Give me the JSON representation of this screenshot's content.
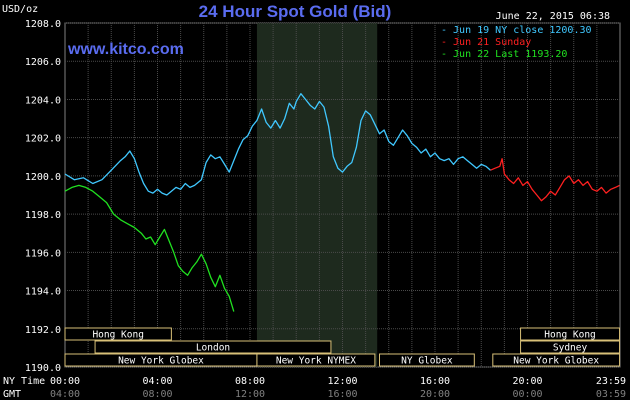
{
  "chart_data": {
    "type": "line",
    "title": "24 Hour Spot Gold (Bid)",
    "watermark": "www.kitco.com",
    "timestamp": "June 22, 2015 06:38",
    "ylabel": "USD/oz",
    "ylim": [
      1190,
      1208
    ],
    "xlim": [
      0,
      24
    ],
    "y_ticks": [
      {
        "v": 1190,
        "label": "1190.0"
      },
      {
        "v": 1192,
        "label": "1192.0"
      },
      {
        "v": 1194,
        "label": "1194.0"
      },
      {
        "v": 1196,
        "label": "1196.0"
      },
      {
        "v": 1198,
        "label": "1198.0"
      },
      {
        "v": 1200,
        "label": "1200.0"
      },
      {
        "v": 1202,
        "label": "1202.0"
      },
      {
        "v": 1204,
        "label": "1204.0"
      },
      {
        "v": 1206,
        "label": "1206.0"
      },
      {
        "v": 1208,
        "label": "1208.0"
      }
    ],
    "x_ticks": [
      {
        "h": 0,
        "ny": "00:00",
        "gmt": "04:00"
      },
      {
        "h": 4,
        "ny": "04:00",
        "gmt": "08:00"
      },
      {
        "h": 8,
        "ny": "08:00",
        "gmt": "12:00"
      },
      {
        "h": 12,
        "ny": "12:00",
        "gmt": "16:00"
      },
      {
        "h": 16,
        "ny": "16:00",
        "gmt": "20:00"
      },
      {
        "h": 20,
        "ny": "20:00",
        "gmt": "00:00"
      },
      {
        "h": 23.98,
        "ny": "23:59",
        "gmt": "03:59"
      }
    ],
    "x_axis_labels": {
      "ny": "NY Time",
      "gmt": "GMT"
    },
    "highlight_range": [
      8.3,
      13.5
    ],
    "grid": true,
    "legend_position": "top-right",
    "series": [
      {
        "name": "Jun 19 NY close 1200.30",
        "color": "#40c8ff",
        "points": [
          [
            0,
            1200.1
          ],
          [
            0.4,
            1199.8
          ],
          [
            0.8,
            1199.9
          ],
          [
            1.2,
            1199.6
          ],
          [
            1.6,
            1199.8
          ],
          [
            2.0,
            1200.3
          ],
          [
            2.4,
            1200.8
          ],
          [
            2.6,
            1201.0
          ],
          [
            2.8,
            1201.3
          ],
          [
            3.0,
            1200.9
          ],
          [
            3.2,
            1200.2
          ],
          [
            3.4,
            1199.6
          ],
          [
            3.6,
            1199.2
          ],
          [
            3.8,
            1199.1
          ],
          [
            4.0,
            1199.3
          ],
          [
            4.2,
            1199.1
          ],
          [
            4.4,
            1199.0
          ],
          [
            4.6,
            1199.2
          ],
          [
            4.8,
            1199.4
          ],
          [
            5.0,
            1199.3
          ],
          [
            5.2,
            1199.6
          ],
          [
            5.4,
            1199.4
          ],
          [
            5.6,
            1199.5
          ],
          [
            5.9,
            1199.8
          ],
          [
            6.1,
            1200.7
          ],
          [
            6.3,
            1201.1
          ],
          [
            6.5,
            1200.9
          ],
          [
            6.7,
            1201.0
          ],
          [
            6.9,
            1200.6
          ],
          [
            7.1,
            1200.2
          ],
          [
            7.3,
            1200.8
          ],
          [
            7.5,
            1201.4
          ],
          [
            7.7,
            1201.9
          ],
          [
            7.9,
            1202.1
          ],
          [
            8.1,
            1202.6
          ],
          [
            8.3,
            1202.9
          ],
          [
            8.5,
            1203.5
          ],
          [
            8.7,
            1202.8
          ],
          [
            8.9,
            1202.5
          ],
          [
            9.1,
            1202.9
          ],
          [
            9.3,
            1202.5
          ],
          [
            9.5,
            1203.0
          ],
          [
            9.7,
            1203.8
          ],
          [
            9.9,
            1203.5
          ],
          [
            10.0,
            1203.9
          ],
          [
            10.2,
            1204.3
          ],
          [
            10.4,
            1204.0
          ],
          [
            10.6,
            1203.7
          ],
          [
            10.8,
            1203.5
          ],
          [
            11.0,
            1203.9
          ],
          [
            11.2,
            1203.6
          ],
          [
            11.4,
            1202.6
          ],
          [
            11.6,
            1201.0
          ],
          [
            11.8,
            1200.4
          ],
          [
            12.0,
            1200.2
          ],
          [
            12.2,
            1200.5
          ],
          [
            12.4,
            1200.7
          ],
          [
            12.6,
            1201.5
          ],
          [
            12.8,
            1202.9
          ],
          [
            13.0,
            1203.4
          ],
          [
            13.2,
            1203.2
          ],
          [
            13.4,
            1202.7
          ],
          [
            13.6,
            1202.2
          ],
          [
            13.8,
            1202.4
          ],
          [
            14.0,
            1201.8
          ],
          [
            14.2,
            1201.6
          ],
          [
            14.4,
            1202.0
          ],
          [
            14.6,
            1202.4
          ],
          [
            14.8,
            1202.1
          ],
          [
            15.0,
            1201.7
          ],
          [
            15.2,
            1201.5
          ],
          [
            15.4,
            1201.2
          ],
          [
            15.6,
            1201.4
          ],
          [
            15.8,
            1201.0
          ],
          [
            16.0,
            1201.2
          ],
          [
            16.2,
            1200.9
          ],
          [
            16.4,
            1200.8
          ],
          [
            16.6,
            1200.9
          ],
          [
            16.8,
            1200.6
          ],
          [
            17.0,
            1200.9
          ],
          [
            17.2,
            1201.0
          ],
          [
            17.4,
            1200.8
          ],
          [
            17.6,
            1200.6
          ],
          [
            17.8,
            1200.4
          ],
          [
            18.0,
            1200.6
          ],
          [
            18.2,
            1200.5
          ],
          [
            18.4,
            1200.3
          ]
        ]
      },
      {
        "name": "Jun 21 Sunday",
        "color": "#ff2020",
        "points": [
          [
            18.4,
            1200.3
          ],
          [
            18.6,
            1200.4
          ],
          [
            18.8,
            1200.5
          ],
          [
            18.9,
            1200.9
          ],
          [
            19.0,
            1200.1
          ],
          [
            19.2,
            1199.8
          ],
          [
            19.4,
            1199.6
          ],
          [
            19.6,
            1199.9
          ],
          [
            19.8,
            1199.5
          ],
          [
            20.0,
            1199.7
          ],
          [
            20.2,
            1199.3
          ],
          [
            20.4,
            1199.0
          ],
          [
            20.6,
            1198.7
          ],
          [
            20.8,
            1198.9
          ],
          [
            21.0,
            1199.2
          ],
          [
            21.2,
            1199.0
          ],
          [
            21.4,
            1199.4
          ],
          [
            21.6,
            1199.8
          ],
          [
            21.8,
            1200.0
          ],
          [
            22.0,
            1199.6
          ],
          [
            22.2,
            1199.8
          ],
          [
            22.4,
            1199.5
          ],
          [
            22.6,
            1199.7
          ],
          [
            22.8,
            1199.3
          ],
          [
            23.0,
            1199.2
          ],
          [
            23.2,
            1199.4
          ],
          [
            23.4,
            1199.1
          ],
          [
            23.6,
            1199.3
          ],
          [
            23.8,
            1199.4
          ],
          [
            23.98,
            1199.5
          ]
        ]
      },
      {
        "name": "Jun 22 Last 1193.20",
        "color": "#20e020",
        "points": [
          [
            0,
            1199.2
          ],
          [
            0.3,
            1199.4
          ],
          [
            0.6,
            1199.5
          ],
          [
            0.9,
            1199.4
          ],
          [
            1.2,
            1199.2
          ],
          [
            1.5,
            1198.9
          ],
          [
            1.8,
            1198.6
          ],
          [
            2.1,
            1198.0
          ],
          [
            2.4,
            1197.7
          ],
          [
            2.7,
            1197.5
          ],
          [
            3.0,
            1197.3
          ],
          [
            3.3,
            1197.0
          ],
          [
            3.5,
            1196.7
          ],
          [
            3.7,
            1196.8
          ],
          [
            3.9,
            1196.4
          ],
          [
            4.1,
            1196.8
          ],
          [
            4.3,
            1197.2
          ],
          [
            4.5,
            1196.6
          ],
          [
            4.7,
            1196.0
          ],
          [
            4.9,
            1195.3
          ],
          [
            5.1,
            1195.0
          ],
          [
            5.3,
            1194.8
          ],
          [
            5.5,
            1195.2
          ],
          [
            5.7,
            1195.5
          ],
          [
            5.9,
            1195.9
          ],
          [
            6.1,
            1195.4
          ],
          [
            6.3,
            1194.7
          ],
          [
            6.5,
            1194.2
          ],
          [
            6.7,
            1194.8
          ],
          [
            6.9,
            1194.1
          ],
          [
            7.1,
            1193.7
          ],
          [
            7.3,
            1192.9
          ]
        ]
      }
    ],
    "sessions": [
      {
        "label": "Hong Kong",
        "start": 0,
        "end": 4.6,
        "row": 0
      },
      {
        "label": "Hong Kong",
        "start": 19.7,
        "end": 23.98,
        "row": 0
      },
      {
        "label": "Sydney",
        "start": 19.7,
        "end": 23.98,
        "row": 1
      },
      {
        "label": "London",
        "start": 1.3,
        "end": 11.5,
        "row": 1
      },
      {
        "label": "New York Globex",
        "start": 0,
        "end": 8.3,
        "row": 2
      },
      {
        "label": "New York NYMEX",
        "start": 8.3,
        "end": 13.4,
        "row": 2
      },
      {
        "label": "NY Globex",
        "start": 13.6,
        "end": 17.7,
        "row": 2
      },
      {
        "label": "New York Globex",
        "start": 18.5,
        "end": 23.98,
        "row": 2
      }
    ]
  }
}
